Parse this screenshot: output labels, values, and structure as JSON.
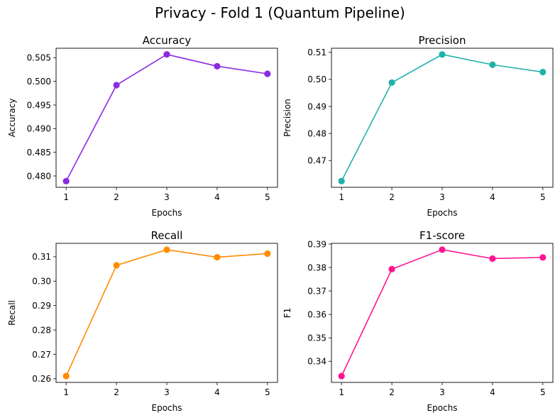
{
  "figure": {
    "title": "Privacy - Fold 1 (Quantum Pipeline)"
  },
  "chart_data": [
    {
      "type": "line",
      "title": "Accuracy",
      "xlabel": "Epochs",
      "ylabel": "Accuracy",
      "x": [
        1,
        2,
        3,
        4,
        5
      ],
      "y": [
        0.4789,
        0.4992,
        0.5057,
        0.5032,
        0.5016
      ],
      "xticks": [
        1,
        2,
        3,
        4,
        5
      ],
      "yticks": [
        0.48,
        0.485,
        0.49,
        0.495,
        0.5,
        0.505
      ],
      "ytick_labels": [
        "0.480",
        "0.485",
        "0.490",
        "0.495",
        "0.500",
        "0.505"
      ],
      "xlim": [
        0.8,
        5.2
      ],
      "ylim": [
        0.4776,
        0.507
      ],
      "color": "#8a2be2",
      "marker": "circle",
      "grid": false
    },
    {
      "type": "line",
      "title": "Precision",
      "xlabel": "Epochs",
      "ylabel": "Precision",
      "x": [
        1,
        2,
        3,
        4,
        5
      ],
      "y": [
        0.4624,
        0.4988,
        0.5092,
        0.5054,
        0.5027
      ],
      "xticks": [
        1,
        2,
        3,
        4,
        5
      ],
      "yticks": [
        0.47,
        0.48,
        0.49,
        0.5,
        0.51
      ],
      "ytick_labels": [
        "0.47",
        "0.48",
        "0.49",
        "0.50",
        "0.51"
      ],
      "xlim": [
        0.8,
        5.2
      ],
      "ylim": [
        0.4601,
        0.5115
      ],
      "color": "#20b2aa",
      "marker": "circle",
      "grid": false
    },
    {
      "type": "line",
      "title": "Recall",
      "xlabel": "Epochs",
      "ylabel": "Recall",
      "x": [
        1,
        2,
        3,
        4,
        5
      ],
      "y": [
        0.2611,
        0.3065,
        0.3129,
        0.3098,
        0.3113
      ],
      "xticks": [
        1,
        2,
        3,
        4,
        5
      ],
      "yticks": [
        0.26,
        0.27,
        0.28,
        0.29,
        0.3,
        0.31
      ],
      "ytick_labels": [
        "0.26",
        "0.27",
        "0.28",
        "0.29",
        "0.30",
        "0.31"
      ],
      "xlim": [
        0.8,
        5.2
      ],
      "ylim": [
        0.2585,
        0.3155
      ],
      "color": "#ff8c00",
      "marker": "circle",
      "grid": false
    },
    {
      "type": "line",
      "title": "F1-score",
      "xlabel": "Epochs",
      "ylabel": "F1",
      "x": [
        1,
        2,
        3,
        4,
        5
      ],
      "y": [
        0.3337,
        0.3793,
        0.3876,
        0.3838,
        0.3843
      ],
      "xticks": [
        1,
        2,
        3,
        4,
        5
      ],
      "yticks": [
        0.34,
        0.35,
        0.36,
        0.37,
        0.38,
        0.39
      ],
      "ytick_labels": [
        "0.34",
        "0.35",
        "0.36",
        "0.37",
        "0.38",
        "0.39"
      ],
      "xlim": [
        0.8,
        5.2
      ],
      "ylim": [
        0.331,
        0.3903
      ],
      "color": "#ff1493",
      "marker": "circle",
      "grid": false
    }
  ]
}
